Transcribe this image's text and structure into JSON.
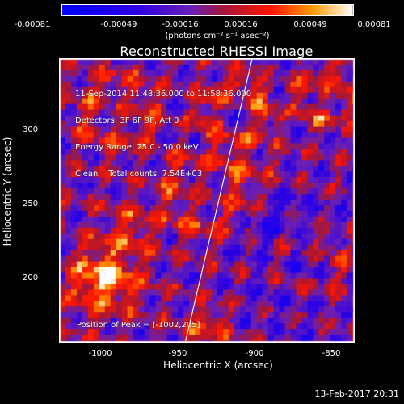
{
  "colorbar": {
    "ticks": [
      "-0.00081",
      "-0.00049",
      "-0.00016",
      "0.00016",
      "0.00049",
      "0.00081"
    ],
    "units": "(photons cm⁻² s⁻¹ asec⁻²)",
    "colors": [
      "#0000ff",
      "#4b00c8",
      "#7a1aa6",
      "#ad1240",
      "#ff0000",
      "#ff6a00",
      "#ffd000",
      "#ffffff"
    ]
  },
  "plot": {
    "title": "Reconstructed RHESSI Image",
    "info_lines": [
      "11-Sep-2014 11:48:36.000 to 11:58:36.000",
      "Detectors: 3F 6F 9F, Att 0",
      "Energy Range: 25.0 - 50.0 keV",
      "Clean    Total counts: 7.54E+03"
    ],
    "peak_text": "Position of Peak = [-1002,205]",
    "xlabel": "Heliocentric X (arcsec)",
    "ylabel": "Heliocentric Y (arcsec)",
    "xticks": [
      "-1000",
      "-950",
      "-900",
      "-850"
    ],
    "yticks": [
      "300",
      "250",
      "200"
    ],
    "peak_position": [
      -1002,
      205
    ],
    "limb_line_present": true
  },
  "footer": {
    "timestamp": "13-Feb-2017 20:31"
  }
}
